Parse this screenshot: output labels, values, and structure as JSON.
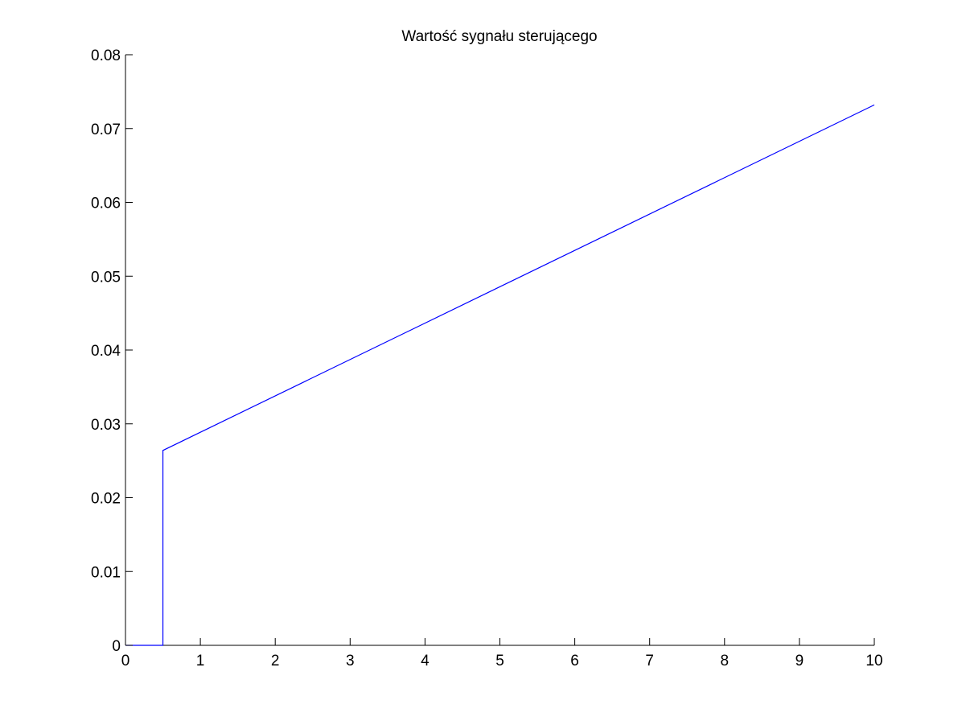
{
  "chart_data": {
    "type": "line",
    "title": "Wartość sygnału sterującego",
    "xlabel": "",
    "ylabel": "",
    "xlim": [
      0,
      10
    ],
    "ylim": [
      0,
      0.08
    ],
    "xticks": [
      "0",
      "1",
      "2",
      "3",
      "4",
      "5",
      "6",
      "7",
      "8",
      "9",
      "10"
    ],
    "yticks": [
      "0",
      "0.01",
      "0.02",
      "0.03",
      "0.04",
      "0.05",
      "0.06",
      "0.07",
      "0.08"
    ],
    "grid": false,
    "legend": null,
    "series": [
      {
        "color": "#0000ff",
        "x": [
          0,
          0.5,
          0.5,
          10
        ],
        "y": [
          0,
          0,
          0.0264,
          0.0732
        ]
      }
    ]
  }
}
